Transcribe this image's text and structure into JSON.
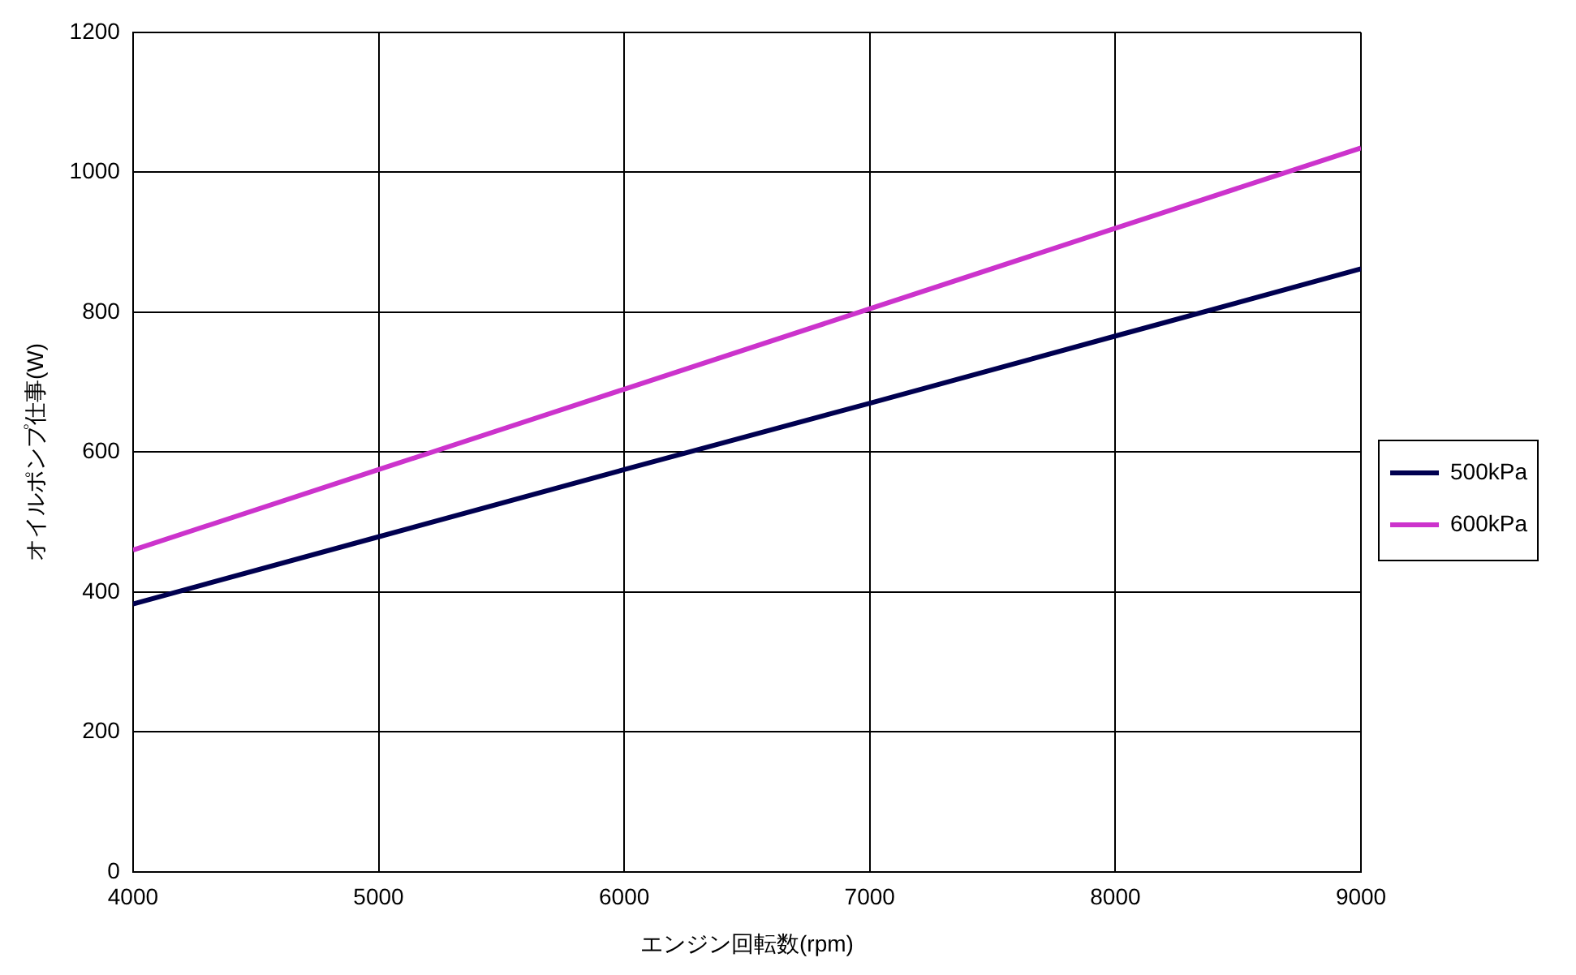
{
  "chart_data": {
    "type": "line",
    "xlabel": "エンジン回転数(rpm)",
    "ylabel": "オイルポンプ仕事(W)",
    "x": [
      4000,
      5000,
      6000,
      7000,
      8000,
      9000
    ],
    "series": [
      {
        "name": "500kPa",
        "color": "#000050",
        "values": [
          383,
          479,
          575,
          670,
          766,
          862
        ]
      },
      {
        "name": "600kPa",
        "color": "#cc33cc",
        "values": [
          460,
          575,
          690,
          805,
          920,
          1035
        ]
      }
    ],
    "xlim": [
      4000,
      9000
    ],
    "xticks": [
      4000,
      5000,
      6000,
      7000,
      8000,
      9000
    ],
    "ylim": [
      0,
      1200
    ],
    "yticks": [
      0,
      200,
      400,
      600,
      800,
      1000,
      1200
    ],
    "grid": true,
    "legend": "right",
    "marker": "none",
    "line_style": "solid"
  }
}
